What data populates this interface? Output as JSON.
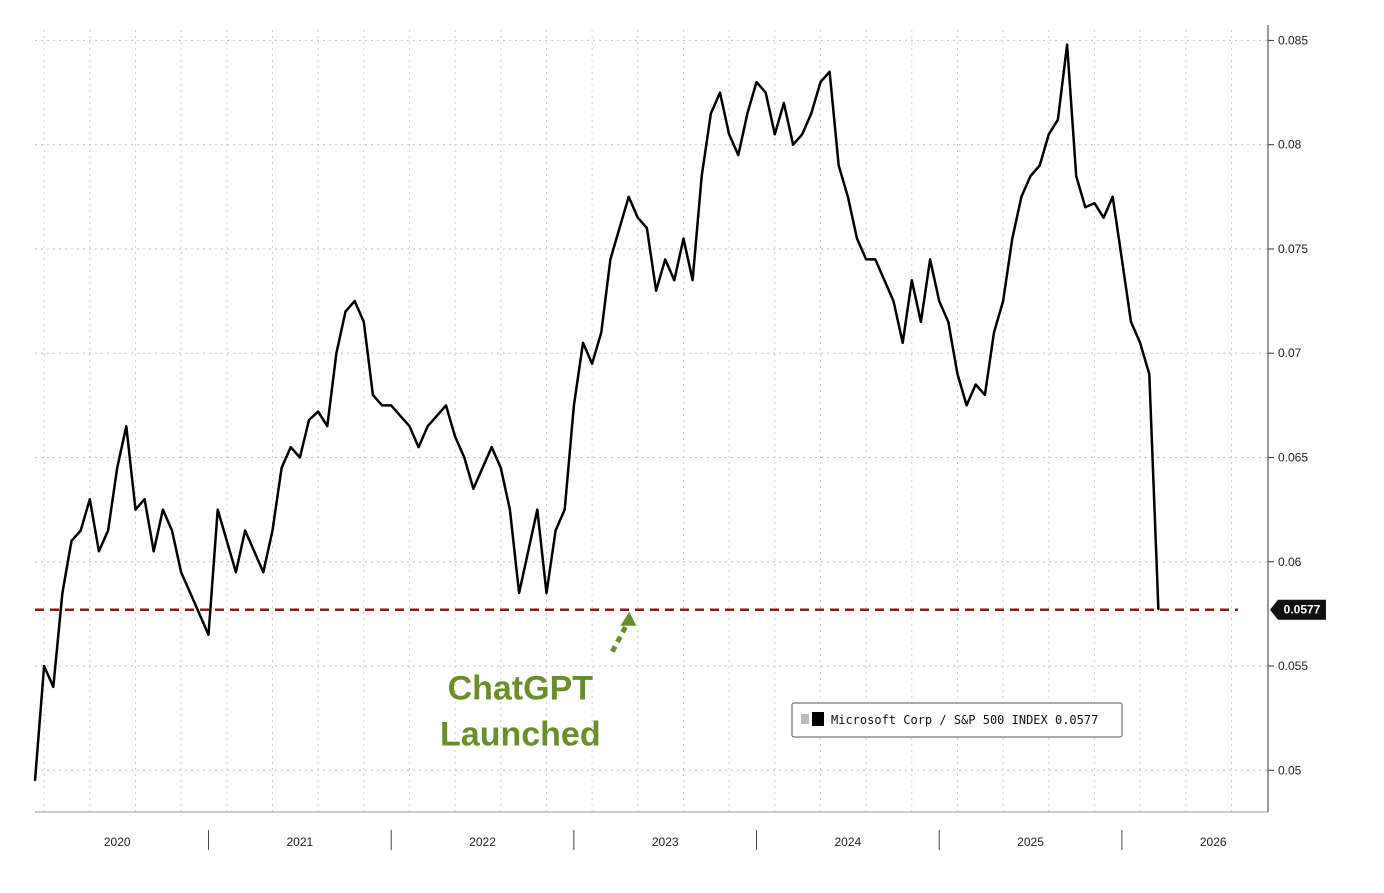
{
  "chart_data": {
    "type": "line",
    "title": "",
    "xlabel": "",
    "ylabel": "",
    "xlim": [
      2019.55,
      2026.3
    ],
    "ylim": [
      0.048,
      0.0855
    ],
    "grid": true,
    "yticks": [
      0.05,
      0.055,
      0.06,
      0.065,
      0.07,
      0.075,
      0.08,
      0.085
    ],
    "ytick_labels": [
      "0.05",
      "0.055",
      "0.06",
      "0.065",
      "0.07",
      "0.075",
      "0.08",
      "0.085"
    ],
    "xticks": [
      2020.0,
      2021.0,
      2022.0,
      2023.0,
      2024.0,
      2025.0,
      2026.0
    ],
    "xtick_labels": [
      "2020",
      "2021",
      "2022",
      "2023",
      "2024",
      "2025",
      "2026"
    ],
    "x_year_boundaries": [
      2020.5,
      2021.5,
      2022.5,
      2023.5,
      2024.5,
      2025.5
    ],
    "series": [
      {
        "name": "Microsoft Corp / S&P 500 INDEX",
        "color": "#000000",
        "x": [
          2019.55,
          2019.6,
          2019.65,
          2019.7,
          2019.75,
          2019.8,
          2019.85,
          2019.9,
          2019.95,
          2020.0,
          2020.05,
          2020.1,
          2020.15,
          2020.2,
          2020.25,
          2020.3,
          2020.35,
          2020.4,
          2020.45,
          2020.5,
          2020.55,
          2020.6,
          2020.65,
          2020.7,
          2020.75,
          2020.8,
          2020.85,
          2020.9,
          2020.95,
          2021.0,
          2021.05,
          2021.1,
          2021.15,
          2021.2,
          2021.25,
          2021.3,
          2021.35,
          2021.4,
          2021.45,
          2021.5,
          2021.55,
          2021.6,
          2021.65,
          2021.7,
          2021.75,
          2021.8,
          2021.85,
          2021.9,
          2021.95,
          2022.0,
          2022.05,
          2022.1,
          2022.15,
          2022.2,
          2022.25,
          2022.3,
          2022.35,
          2022.4,
          2022.45,
          2022.5,
          2022.55,
          2022.6,
          2022.65,
          2022.7,
          2022.75,
          2022.8,
          2022.85,
          2022.9,
          2022.95,
          2023.0,
          2023.05,
          2023.1,
          2023.15,
          2023.2,
          2023.25,
          2023.3,
          2023.35,
          2023.4,
          2023.45,
          2023.5,
          2023.55,
          2023.6,
          2023.65,
          2023.7,
          2023.75,
          2023.8,
          2023.85,
          2023.9,
          2023.95,
          2024.0,
          2024.05,
          2024.1,
          2024.15,
          2024.2,
          2024.25,
          2024.3,
          2024.35,
          2024.4,
          2024.45,
          2024.5,
          2024.55,
          2024.6,
          2024.65,
          2024.7,
          2024.75,
          2024.8,
          2024.85,
          2024.9,
          2024.95,
          2025.0,
          2025.05,
          2025.1,
          2025.15,
          2025.2,
          2025.25,
          2025.3,
          2025.35,
          2025.4,
          2025.45,
          2025.5,
          2025.55,
          2025.6,
          2025.65,
          2025.7
        ],
        "values": [
          0.0495,
          0.055,
          0.054,
          0.0585,
          0.061,
          0.0615,
          0.063,
          0.0605,
          0.0615,
          0.0645,
          0.0665,
          0.0625,
          0.063,
          0.0605,
          0.0625,
          0.0615,
          0.0595,
          0.0585,
          0.0575,
          0.0565,
          0.0625,
          0.061,
          0.0595,
          0.0615,
          0.0605,
          0.0595,
          0.0615,
          0.0645,
          0.0655,
          0.065,
          0.0668,
          0.0672,
          0.0665,
          0.07,
          0.072,
          0.0725,
          0.0715,
          0.068,
          0.0675,
          0.0675,
          0.067,
          0.0665,
          0.0655,
          0.0665,
          0.067,
          0.0675,
          0.066,
          0.065,
          0.0635,
          0.0645,
          0.0655,
          0.0645,
          0.0625,
          0.0585,
          0.0605,
          0.0625,
          0.0585,
          0.0615,
          0.0625,
          0.0675,
          0.0705,
          0.0695,
          0.071,
          0.0745,
          0.076,
          0.0775,
          0.0765,
          0.076,
          0.073,
          0.0745,
          0.0735,
          0.0755,
          0.0735,
          0.0785,
          0.0815,
          0.0825,
          0.0805,
          0.0795,
          0.0815,
          0.083,
          0.0825,
          0.0805,
          0.082,
          0.08,
          0.0805,
          0.0815,
          0.083,
          0.0835,
          0.079,
          0.0775,
          0.0755,
          0.0745,
          0.0745,
          0.0735,
          0.0725,
          0.0705,
          0.0735,
          0.0715,
          0.0745,
          0.0725,
          0.0715,
          0.069,
          0.0675,
          0.0685,
          0.068,
          0.071,
          0.0725,
          0.0755,
          0.0775,
          0.0785,
          0.079,
          0.0805,
          0.0812,
          0.0848,
          0.0785,
          0.077,
          0.0772,
          0.0765,
          0.0775,
          0.0745,
          0.0715,
          0.0705,
          0.069,
          0.0577
        ]
      }
    ],
    "last_value_label": "0.0577",
    "reference_line": {
      "value": 0.0577,
      "color": "#8b1a1a",
      "style": "dashed"
    },
    "annotation": {
      "text_line1": "ChatGPT",
      "text_line2": "Launched",
      "color": "#6a8f2a",
      "x": 2022.82,
      "y": 0.0577
    },
    "legend": {
      "placement": "bottom-right",
      "text": "Microsoft Corp / S&P 500 INDEX 0.0577"
    }
  }
}
